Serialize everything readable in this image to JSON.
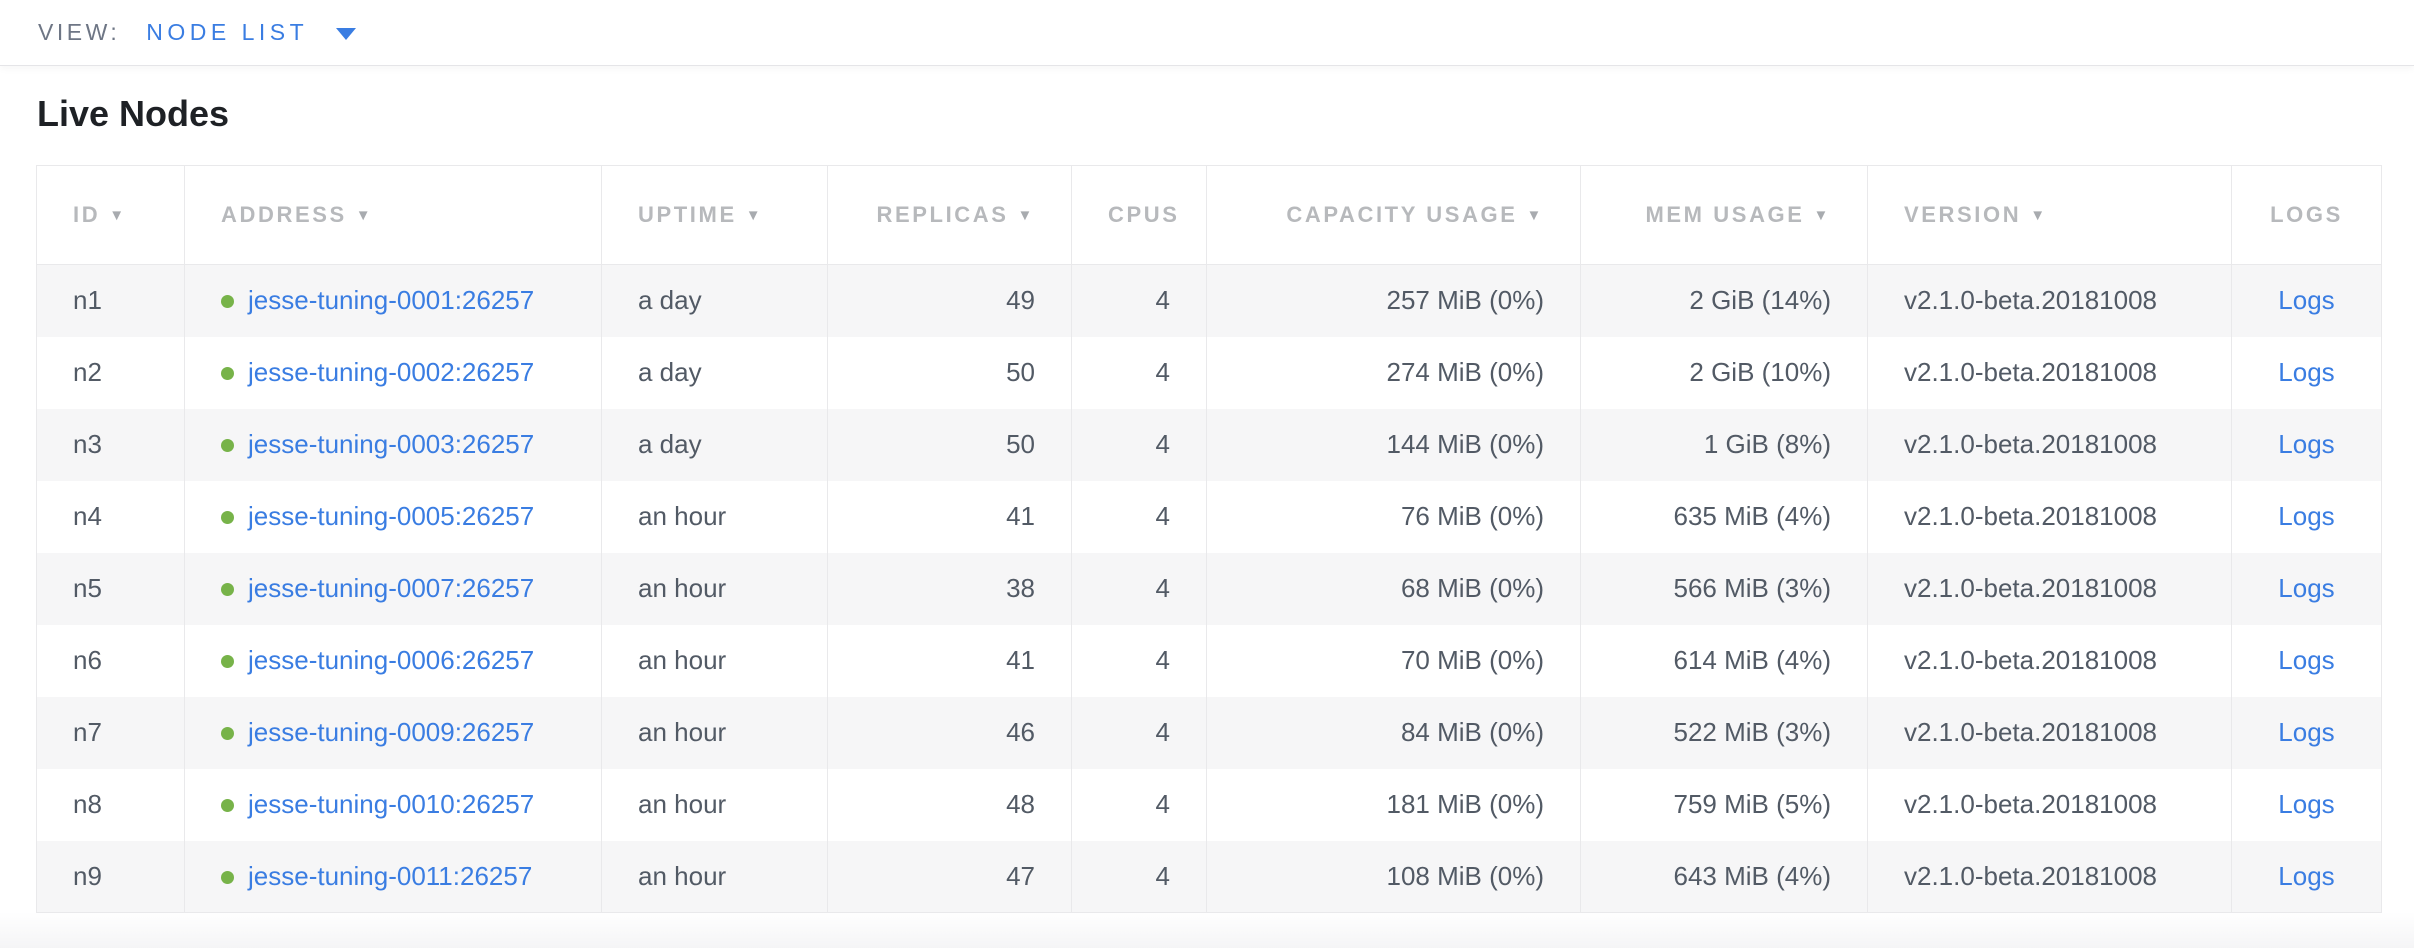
{
  "view_bar": {
    "label": "VIEW:",
    "selected": "NODE LIST"
  },
  "page": {
    "title": "Live Nodes"
  },
  "icons": {
    "view_caret": "caret-down",
    "sort_caret_glyph": "▼",
    "node_status": "green-dot-healthy"
  },
  "colors": {
    "link_blue": "#3a7de2",
    "status_green": "#77b349",
    "header_gray": "#b7b9bc",
    "cell_text": "#525a65",
    "zebra_row": "#f6f6f7",
    "border": "#e9e9eb"
  },
  "table": {
    "columns": [
      {
        "key": "id",
        "label": "ID",
        "sortable": true,
        "align": "left"
      },
      {
        "key": "address",
        "label": "ADDRESS",
        "sortable": true,
        "align": "left"
      },
      {
        "key": "uptime",
        "label": "UPTIME",
        "sortable": true,
        "align": "left"
      },
      {
        "key": "replicas",
        "label": "REPLICAS",
        "sortable": true,
        "align": "right"
      },
      {
        "key": "cpus",
        "label": "CPUS",
        "sortable": false,
        "align": "right"
      },
      {
        "key": "capacity",
        "label": "CAPACITY USAGE",
        "sortable": true,
        "align": "right"
      },
      {
        "key": "mem",
        "label": "MEM USAGE",
        "sortable": true,
        "align": "right"
      },
      {
        "key": "version",
        "label": "VERSION",
        "sortable": true,
        "align": "left"
      },
      {
        "key": "logs",
        "label": "LOGS",
        "sortable": false,
        "align": "center"
      }
    ],
    "rows": [
      {
        "id": "n1",
        "address": "jesse-tuning-0001:26257",
        "uptime": "a day",
        "replicas": "49",
        "cpus": "4",
        "capacity": "257 MiB (0%)",
        "mem": "2 GiB (14%)",
        "version": "v2.1.0-beta.20181008",
        "logs": "Logs"
      },
      {
        "id": "n2",
        "address": "jesse-tuning-0002:26257",
        "uptime": "a day",
        "replicas": "50",
        "cpus": "4",
        "capacity": "274 MiB (0%)",
        "mem": "2 GiB (10%)",
        "version": "v2.1.0-beta.20181008",
        "logs": "Logs"
      },
      {
        "id": "n3",
        "address": "jesse-tuning-0003:26257",
        "uptime": "a day",
        "replicas": "50",
        "cpus": "4",
        "capacity": "144 MiB (0%)",
        "mem": "1 GiB (8%)",
        "version": "v2.1.0-beta.20181008",
        "logs": "Logs"
      },
      {
        "id": "n4",
        "address": "jesse-tuning-0005:26257",
        "uptime": "an hour",
        "replicas": "41",
        "cpus": "4",
        "capacity": "76 MiB (0%)",
        "mem": "635 MiB (4%)",
        "version": "v2.1.0-beta.20181008",
        "logs": "Logs"
      },
      {
        "id": "n5",
        "address": "jesse-tuning-0007:26257",
        "uptime": "an hour",
        "replicas": "38",
        "cpus": "4",
        "capacity": "68 MiB (0%)",
        "mem": "566 MiB (3%)",
        "version": "v2.1.0-beta.20181008",
        "logs": "Logs"
      },
      {
        "id": "n6",
        "address": "jesse-tuning-0006:26257",
        "uptime": "an hour",
        "replicas": "41",
        "cpus": "4",
        "capacity": "70 MiB (0%)",
        "mem": "614 MiB (4%)",
        "version": "v2.1.0-beta.20181008",
        "logs": "Logs"
      },
      {
        "id": "n7",
        "address": "jesse-tuning-0009:26257",
        "uptime": "an hour",
        "replicas": "46",
        "cpus": "4",
        "capacity": "84 MiB (0%)",
        "mem": "522 MiB (3%)",
        "version": "v2.1.0-beta.20181008",
        "logs": "Logs"
      },
      {
        "id": "n8",
        "address": "jesse-tuning-0010:26257",
        "uptime": "an hour",
        "replicas": "48",
        "cpus": "4",
        "capacity": "181 MiB (0%)",
        "mem": "759 MiB (5%)",
        "version": "v2.1.0-beta.20181008",
        "logs": "Logs"
      },
      {
        "id": "n9",
        "address": "jesse-tuning-0011:26257",
        "uptime": "an hour",
        "replicas": "47",
        "cpus": "4",
        "capacity": "108 MiB (0%)",
        "mem": "643 MiB (4%)",
        "version": "v2.1.0-beta.20181008",
        "logs": "Logs"
      }
    ]
  }
}
